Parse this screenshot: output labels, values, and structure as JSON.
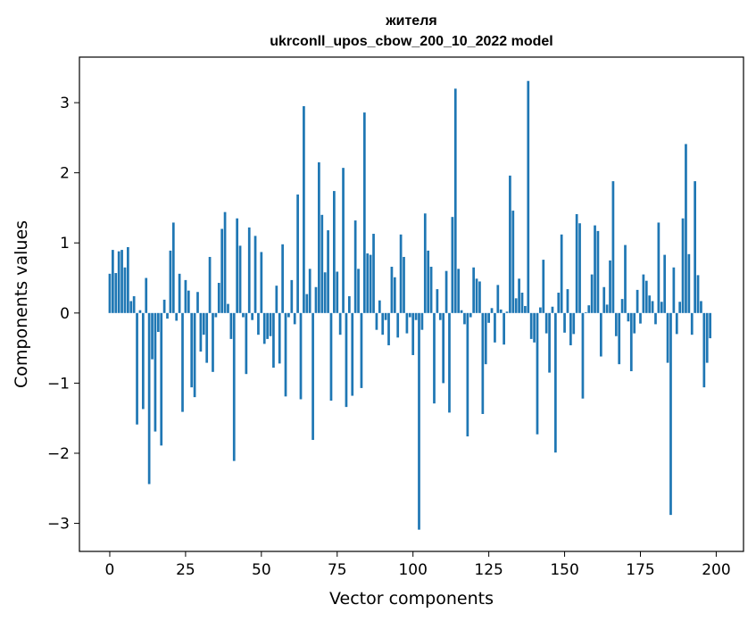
{
  "chart_data": {
    "type": "bar",
    "title_line1": "жителя",
    "title_line2": "ukrconll_upos_cbow_200_10_2022 model",
    "xlabel": "Vector components",
    "ylabel": "Components values",
    "xlim": [
      -10,
      209
    ],
    "ylim": [
      -3.4,
      3.65
    ],
    "xticks": [
      0,
      25,
      50,
      75,
      100,
      125,
      150,
      175,
      200
    ],
    "yticks": [
      -3,
      -2,
      -1,
      0,
      1,
      2,
      3
    ],
    "xtick_labels": [
      "0",
      "25",
      "50",
      "75",
      "100",
      "125",
      "150",
      "175",
      "200"
    ],
    "ytick_labels": [
      "−3",
      "−2",
      "−1",
      "0",
      "1",
      "2",
      "3"
    ],
    "color": "#1f77b4",
    "values": [
      0.56,
      0.9,
      0.57,
      0.88,
      0.9,
      0.65,
      0.94,
      0.17,
      0.24,
      -1.59,
      0.04,
      -1.37,
      0.5,
      -2.44,
      -0.66,
      -1.69,
      -0.27,
      -1.89,
      0.19,
      -0.08,
      0.89,
      1.29,
      -0.11,
      0.56,
      -1.41,
      0.47,
      0.32,
      -1.06,
      -1.2,
      0.3,
      -0.55,
      -0.31,
      -0.71,
      0.8,
      -0.84,
      -0.06,
      0.43,
      1.2,
      1.44,
      0.13,
      -0.37,
      -2.11,
      1.35,
      0.96,
      -0.06,
      -0.87,
      1.22,
      -0.1,
      1.1,
      -0.31,
      0.87,
      -0.44,
      -0.37,
      -0.33,
      -0.78,
      0.39,
      -0.72,
      0.98,
      -1.19,
      -0.06,
      0.47,
      -0.16,
      1.69,
      -1.23,
      2.95,
      0.27,
      0.63,
      -1.81,
      0.37,
      2.15,
      1.4,
      0.58,
      1.18,
      -1.25,
      1.74,
      0.59,
      -0.31,
      2.07,
      -1.34,
      0.24,
      -1.18,
      1.32,
      0.63,
      -1.07,
      2.86,
      0.85,
      0.83,
      1.13,
      -0.24,
      0.18,
      -0.31,
      -0.1,
      -0.46,
      0.66,
      0.51,
      -0.35,
      1.12,
      0.8,
      -0.29,
      -0.06,
      -0.6,
      -0.1,
      -3.09,
      -0.24,
      1.42,
      0.89,
      0.66,
      -1.29,
      0.34,
      -0.1,
      -1.0,
      0.6,
      -1.42,
      1.37,
      3.2,
      0.63,
      0.04,
      -0.16,
      -1.76,
      -0.06,
      0.65,
      0.49,
      0.45,
      -1.44,
      -0.73,
      -0.14,
      0.07,
      -0.42,
      0.4,
      0.05,
      -0.45,
      0.02,
      1.96,
      1.46,
      0.21,
      0.49,
      0.29,
      0.1,
      3.31,
      -0.37,
      -0.42,
      -1.73,
      0.08,
      0.76,
      -0.29,
      -0.85,
      0.09,
      -1.99,
      0.29,
      1.12,
      -0.28,
      0.34,
      -0.46,
      -0.3,
      1.41,
      1.28,
      -1.22,
      0.01,
      0.11,
      0.55,
      1.25,
      1.17,
      -0.62,
      0.37,
      0.12,
      0.75,
      1.88,
      -0.33,
      -0.73,
      0.2,
      0.97,
      -0.12,
      -0.83,
      -0.29,
      0.33,
      -0.15,
      0.55,
      0.46,
      0.25,
      0.17,
      -0.16,
      1.29,
      0.16,
      0.83,
      -0.71,
      -2.88,
      0.65,
      -0.3,
      0.16,
      1.35,
      2.41,
      0.84,
      -0.31,
      1.88,
      0.54,
      0.17,
      -1.06,
      -0.71,
      -0.36
    ]
  }
}
